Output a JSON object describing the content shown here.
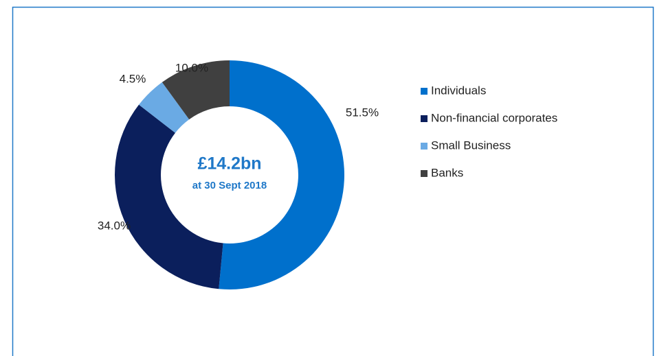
{
  "chart_data": {
    "type": "donut",
    "categories": [
      "Individuals",
      "Non-financial corporates",
      "Small Business",
      "Banks"
    ],
    "values": [
      51.5,
      34.0,
      4.5,
      10.0
    ],
    "value_labels": [
      "51.5%",
      "34.0%",
      "4.5%",
      "10.0%"
    ],
    "colors": [
      "#0070cc",
      "#0b1f5c",
      "#6aaae4",
      "#404040"
    ],
    "center_title": "£14.2bn",
    "center_subtitle": "at 30 Sept 2018",
    "legend": "right"
  }
}
